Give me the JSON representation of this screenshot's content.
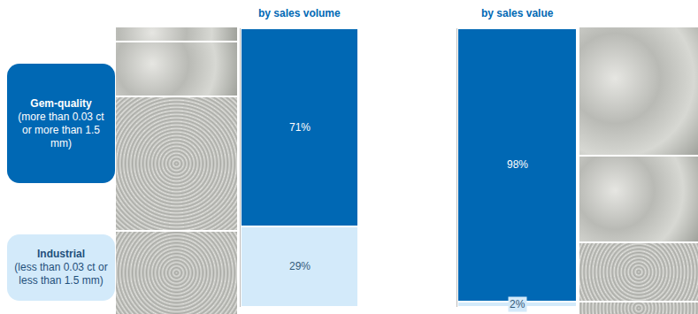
{
  "chart_data": [
    {
      "type": "bar",
      "title": "by sales volume",
      "categories": [
        null
      ],
      "stacked": true,
      "data_labels": true,
      "tick_labels": false,
      "legend": "left",
      "ylim": [
        0,
        100
      ],
      "yticks": [],
      "series": [
        {
          "name": "Gem-quality",
          "description": "(more than 0.03 ct or more than 1.5 mm)",
          "color": "#0068b4",
          "values": [
            71
          ],
          "value_labels": [
            "71%"
          ]
        },
        {
          "name": "Industrial",
          "description": "(less than 0.03 ct or less than 1.5 mm)",
          "color": "#d3eafa",
          "values": [
            29
          ],
          "value_labels": [
            "29%"
          ]
        }
      ]
    },
    {
      "type": "bar",
      "title": "by sales value",
      "categories": [
        null
      ],
      "stacked": true,
      "data_labels": true,
      "tick_labels": false,
      "ylim": [
        0,
        100
      ],
      "yticks": [],
      "series": [
        {
          "name": "Gem-quality",
          "color": "#0068b4",
          "values": [
            98
          ],
          "value_labels": [
            "98%"
          ]
        },
        {
          "name": "Industrial",
          "color": "#d3eafa",
          "values": [
            2
          ],
          "value_labels": [
            "2%"
          ]
        }
      ]
    }
  ]
}
